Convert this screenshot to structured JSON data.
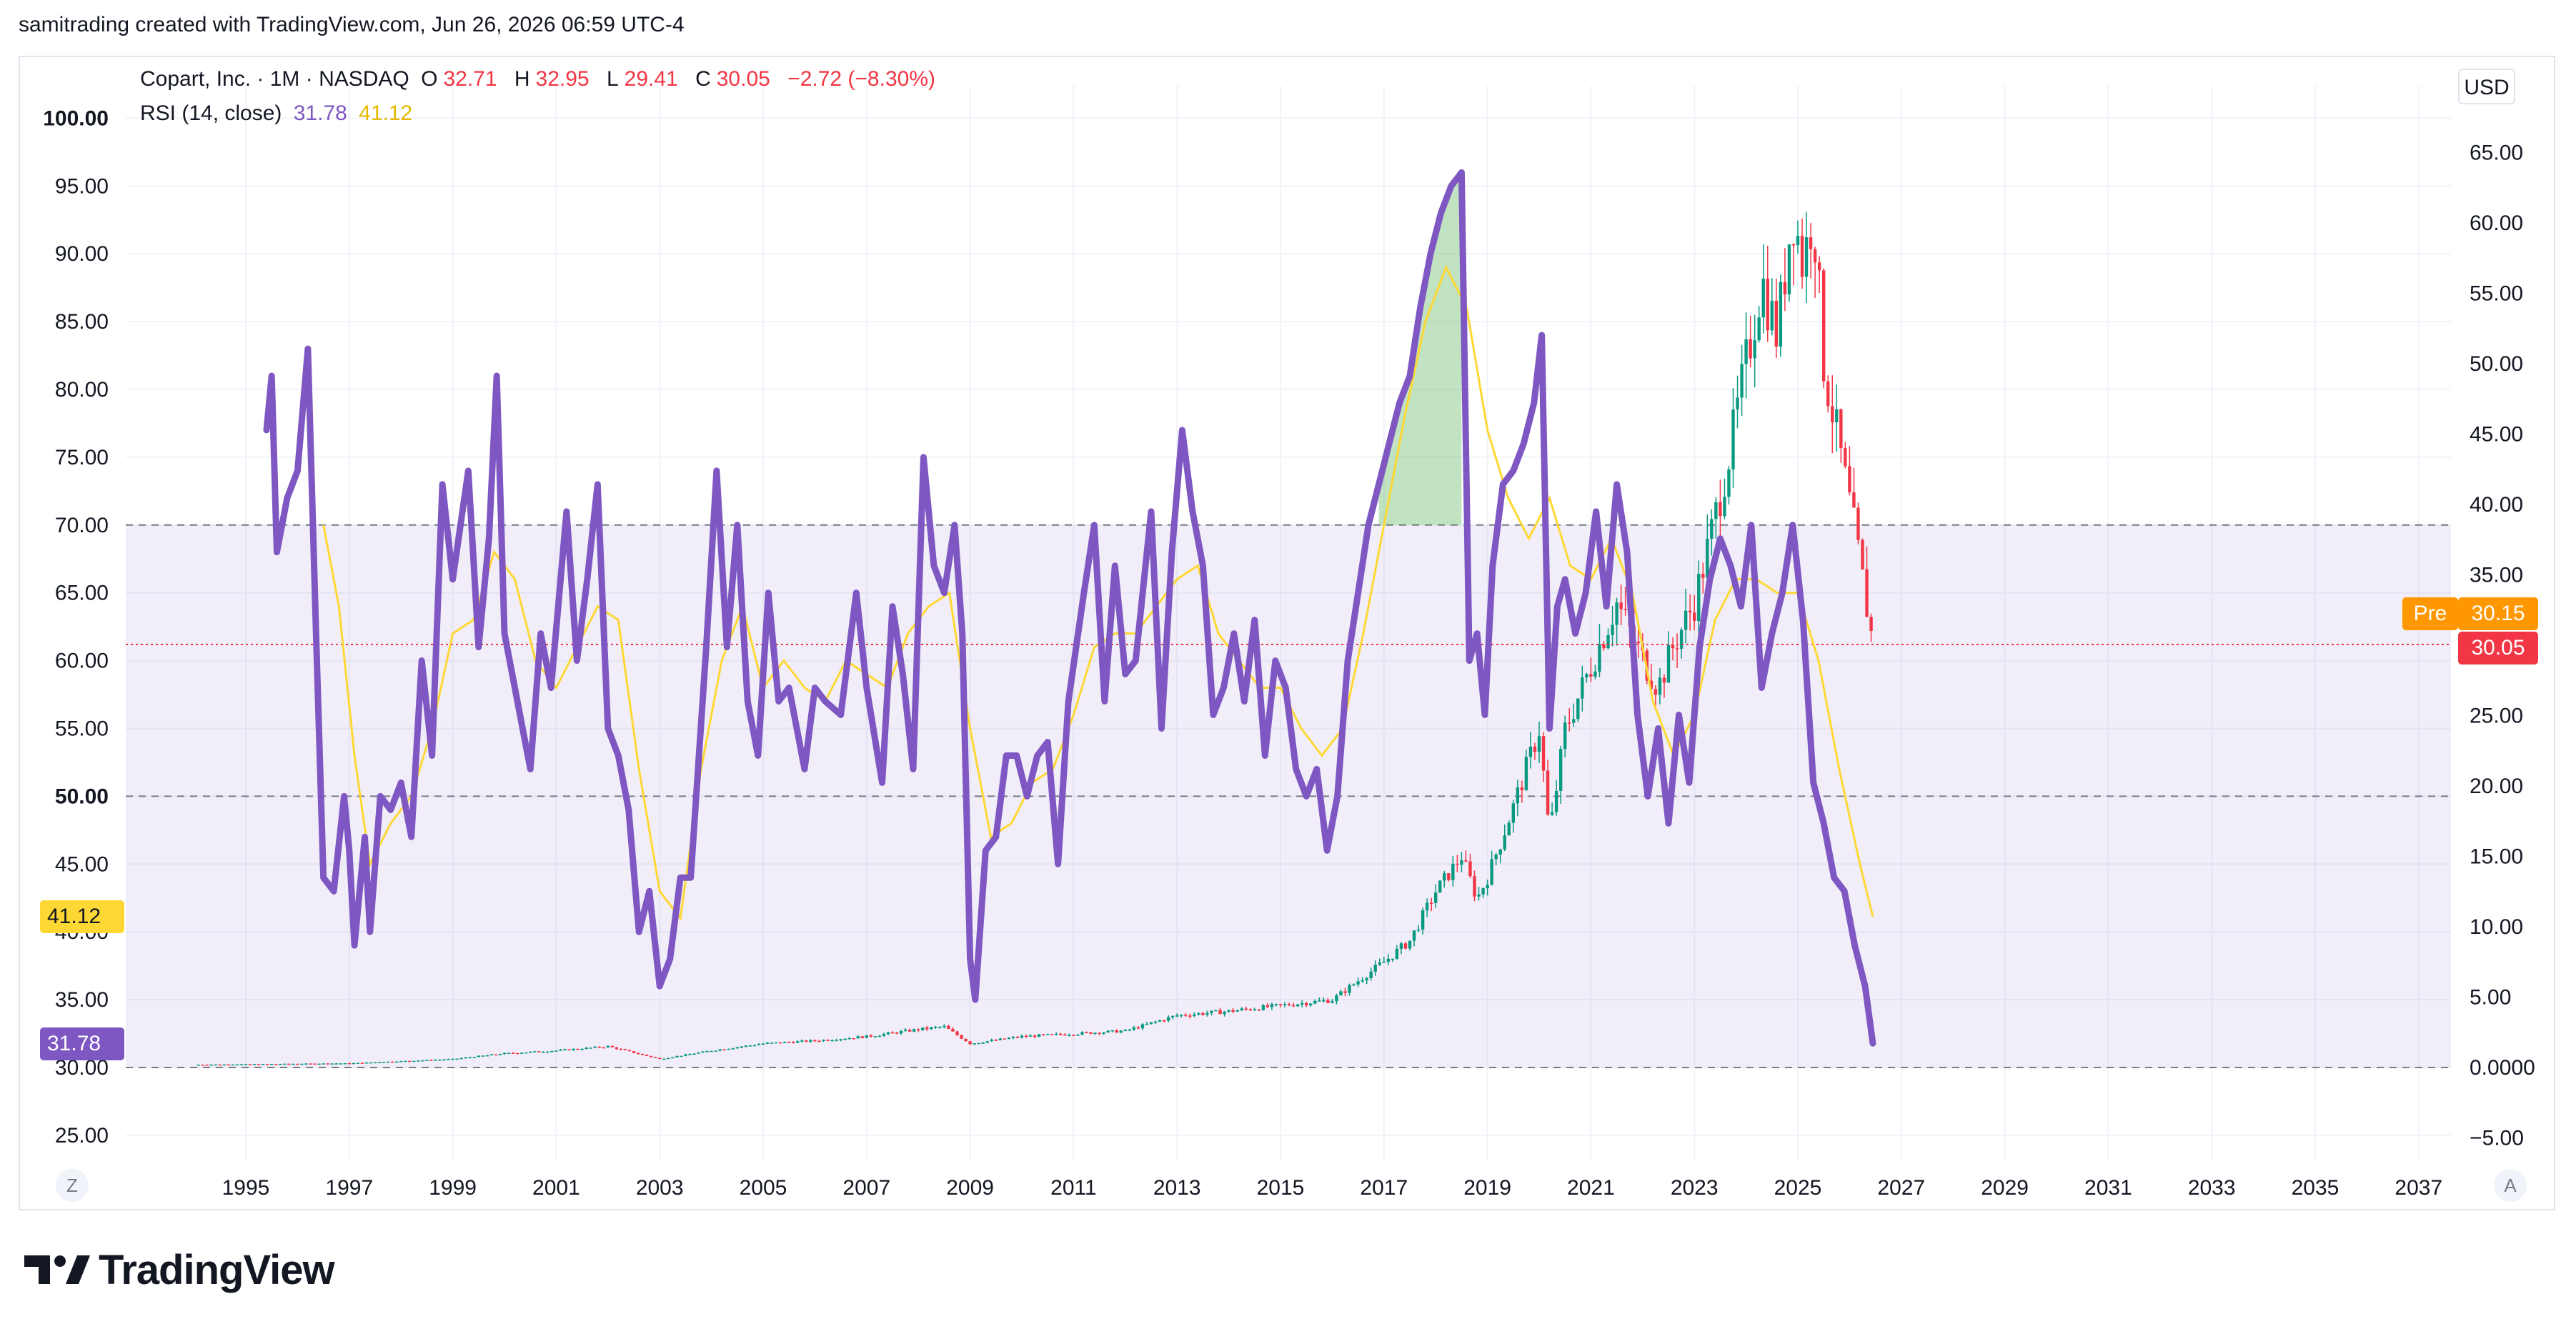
{
  "header": {
    "caption": "samitrading created with TradingView.com, Jun 26, 2026 06:59 UTC-4"
  },
  "legend": {
    "symbol": "Copart, Inc. · 1M · NASDAQ",
    "o_key": "O",
    "o_val": "32.71",
    "h_key": "H",
    "h_val": "32.95",
    "l_key": "L",
    "l_val": "29.41",
    "c_key": "C",
    "c_val": "30.05",
    "change": "−2.72 (−8.30%)",
    "rsi_label": "RSI (14, close)",
    "rsi_value": "31.78",
    "rsi_ma_value": "41.12"
  },
  "currency": "USD",
  "tags": {
    "pre_label": "Pre",
    "pre_price": "30.15",
    "last_price": "30.05",
    "rsi_ma": "41.12",
    "rsi": "31.78"
  },
  "buttons": {
    "left": "Z",
    "right": "A"
  },
  "brand": "TradingView",
  "colors": {
    "rsi": "#7e57c2",
    "rsi_ma": "#fdd835",
    "up": "#089981",
    "down": "#f23645",
    "band": "#7e57c2",
    "pre": "#ff9800"
  },
  "chart_data": {
    "type": "candlestick+line",
    "title": "Copart, Inc. · 1M · NASDAQ",
    "x_ticks": [
      "1995",
      "1997",
      "1999",
      "2001",
      "2003",
      "2005",
      "2007",
      "2009",
      "2011",
      "2013",
      "2015",
      "2017",
      "2019",
      "2021",
      "2023",
      "2025",
      "2027",
      "2029",
      "2031",
      "2033",
      "2035",
      "2037"
    ],
    "price_axis": {
      "ticks": [
        "65.00",
        "60.00",
        "55.00",
        "50.00",
        "45.00",
        "40.00",
        "35.00",
        "30.00",
        "25.00",
        "20.00",
        "15.00",
        "10.00",
        "5.00",
        "0.0000",
        "−5.00"
      ],
      "range": [
        -5,
        65
      ]
    },
    "rsi_axis": {
      "ticks": [
        "100.00",
        "95.00",
        "90.00",
        "85.00",
        "80.00",
        "75.00",
        "70.00",
        "65.00",
        "60.00",
        "55.00",
        "50.00",
        "45.00",
        "40.00",
        "35.00",
        "30.00",
        "25.00"
      ],
      "range": [
        25,
        100
      ],
      "bands": [
        30,
        50,
        70
      ]
    },
    "price_series": [
      [
        1994.0,
        0.2
      ],
      [
        1997.0,
        0.3
      ],
      [
        1999.0,
        0.6
      ],
      [
        2000.0,
        1.0
      ],
      [
        2001.0,
        1.2
      ],
      [
        2002.0,
        1.5
      ],
      [
        2003.0,
        0.6
      ],
      [
        2004.0,
        1.2
      ],
      [
        2005.0,
        1.7
      ],
      [
        2006.0,
        1.9
      ],
      [
        2007.0,
        2.2
      ],
      [
        2008.0,
        2.7
      ],
      [
        2008.5,
        2.9
      ],
      [
        2009.0,
        1.7
      ],
      [
        2010.0,
        2.2
      ],
      [
        2011.0,
        2.4
      ],
      [
        2012.0,
        2.6
      ],
      [
        2013.0,
        3.7
      ],
      [
        2014.0,
        4.0
      ],
      [
        2015.0,
        4.4
      ],
      [
        2016.0,
        4.8
      ],
      [
        2017.0,
        7.5
      ],
      [
        2017.5,
        9.0
      ],
      [
        2018.0,
        12.5
      ],
      [
        2018.5,
        15.0
      ],
      [
        2018.8,
        12.0
      ],
      [
        2019.0,
        13.5
      ],
      [
        2019.5,
        18.5
      ],
      [
        2020.0,
        24.0
      ],
      [
        2020.2,
        16.5
      ],
      [
        2020.5,
        24.0
      ],
      [
        2021.0,
        28.5
      ],
      [
        2021.5,
        33.0
      ],
      [
        2022.0,
        29.0
      ],
      [
        2022.3,
        27.0
      ],
      [
        2022.6,
        30.0
      ],
      [
        2023.0,
        33.0
      ],
      [
        2023.3,
        37.5
      ],
      [
        2023.7,
        44.0
      ],
      [
        2024.0,
        50.0
      ],
      [
        2024.3,
        56.0
      ],
      [
        2024.6,
        52.0
      ],
      [
        2024.9,
        61.0
      ],
      [
        2025.1,
        57.0
      ],
      [
        2025.3,
        61.0
      ],
      [
        2025.5,
        50.0
      ],
      [
        2025.8,
        44.0
      ],
      [
        2026.1,
        38.0
      ],
      [
        2026.3,
        33.5
      ],
      [
        2026.45,
        30.05
      ]
    ],
    "rsi_series": [
      [
        1995.4,
        77
      ],
      [
        1995.5,
        81
      ],
      [
        1995.6,
        68
      ],
      [
        1995.8,
        72
      ],
      [
        1996.0,
        74
      ],
      [
        1996.2,
        83
      ],
      [
        1996.35,
        63
      ],
      [
        1996.5,
        44
      ],
      [
        1996.7,
        43
      ],
      [
        1996.9,
        50
      ],
      [
        1997.0,
        46
      ],
      [
        1997.1,
        39
      ],
      [
        1997.3,
        47
      ],
      [
        1997.4,
        40
      ],
      [
        1997.6,
        50
      ],
      [
        1997.8,
        49
      ],
      [
        1998.0,
        51
      ],
      [
        1998.2,
        47
      ],
      [
        1998.4,
        60
      ],
      [
        1998.6,
        53
      ],
      [
        1998.8,
        73
      ],
      [
        1999.0,
        66
      ],
      [
        1999.3,
        74
      ],
      [
        1999.5,
        61
      ],
      [
        1999.7,
        69
      ],
      [
        1999.85,
        81
      ],
      [
        2000.0,
        62
      ],
      [
        2000.3,
        56
      ],
      [
        2000.5,
        52
      ],
      [
        2000.7,
        62
      ],
      [
        2000.9,
        58
      ],
      [
        2001.2,
        71
      ],
      [
        2001.4,
        60
      ],
      [
        2001.6,
        66
      ],
      [
        2001.8,
        73
      ],
      [
        2002.0,
        55
      ],
      [
        2002.2,
        53
      ],
      [
        2002.4,
        49
      ],
      [
        2002.6,
        40
      ],
      [
        2002.8,
        43
      ],
      [
        2003.0,
        36
      ],
      [
        2003.2,
        38
      ],
      [
        2003.4,
        44
      ],
      [
        2003.6,
        44
      ],
      [
        2003.9,
        61
      ],
      [
        2004.1,
        74
      ],
      [
        2004.3,
        61
      ],
      [
        2004.5,
        70
      ],
      [
        2004.7,
        57
      ],
      [
        2004.9,
        53
      ],
      [
        2005.1,
        65
      ],
      [
        2005.3,
        57
      ],
      [
        2005.5,
        58
      ],
      [
        2005.8,
        52
      ],
      [
        2006.0,
        58
      ],
      [
        2006.2,
        57
      ],
      [
        2006.5,
        56
      ],
      [
        2006.8,
        65
      ],
      [
        2007.0,
        58
      ],
      [
        2007.3,
        51
      ],
      [
        2007.5,
        64
      ],
      [
        2007.7,
        59
      ],
      [
        2007.9,
        52
      ],
      [
        2008.1,
        75
      ],
      [
        2008.3,
        67
      ],
      [
        2008.5,
        65
      ],
      [
        2008.7,
        70
      ],
      [
        2008.85,
        62
      ],
      [
        2009.0,
        38
      ],
      [
        2009.1,
        35
      ],
      [
        2009.3,
        46
      ],
      [
        2009.5,
        47
      ],
      [
        2009.7,
        53
      ],
      [
        2009.9,
        53
      ],
      [
        2010.1,
        50
      ],
      [
        2010.3,
        53
      ],
      [
        2010.5,
        54
      ],
      [
        2010.7,
        45
      ],
      [
        2010.9,
        57
      ],
      [
        2011.2,
        65
      ],
      [
        2011.4,
        70
      ],
      [
        2011.6,
        57
      ],
      [
        2011.8,
        67
      ],
      [
        2012.0,
        59
      ],
      [
        2012.2,
        60
      ],
      [
        2012.5,
        71
      ],
      [
        2012.7,
        55
      ],
      [
        2012.9,
        68
      ],
      [
        2013.1,
        77
      ],
      [
        2013.3,
        71
      ],
      [
        2013.5,
        67
      ],
      [
        2013.7,
        56
      ],
      [
        2013.9,
        58
      ],
      [
        2014.1,
        62
      ],
      [
        2014.3,
        57
      ],
      [
        2014.5,
        63
      ],
      [
        2014.7,
        53
      ],
      [
        2014.9,
        60
      ],
      [
        2015.1,
        58
      ],
      [
        2015.3,
        52
      ],
      [
        2015.5,
        50
      ],
      [
        2015.7,
        52
      ],
      [
        2015.9,
        46
      ],
      [
        2016.1,
        50
      ],
      [
        2016.3,
        60
      ],
      [
        2016.5,
        65
      ],
      [
        2016.7,
        70
      ],
      [
        2016.9,
        73
      ],
      [
        2017.1,
        76
      ],
      [
        2017.3,
        79
      ],
      [
        2017.5,
        81
      ],
      [
        2017.7,
        86
      ],
      [
        2017.9,
        90
      ],
      [
        2018.1,
        93
      ],
      [
        2018.3,
        95
      ],
      [
        2018.5,
        96
      ],
      [
        2018.65,
        60
      ],
      [
        2018.8,
        62
      ],
      [
        2018.95,
        56
      ],
      [
        2019.1,
        67
      ],
      [
        2019.3,
        73
      ],
      [
        2019.5,
        74
      ],
      [
        2019.7,
        76
      ],
      [
        2019.9,
        79
      ],
      [
        2020.05,
        84
      ],
      [
        2020.2,
        55
      ],
      [
        2020.35,
        64
      ],
      [
        2020.5,
        66
      ],
      [
        2020.7,
        62
      ],
      [
        2020.9,
        65
      ],
      [
        2021.1,
        71
      ],
      [
        2021.3,
        64
      ],
      [
        2021.5,
        73
      ],
      [
        2021.7,
        68
      ],
      [
        2021.9,
        56
      ],
      [
        2022.1,
        50
      ],
      [
        2022.3,
        55
      ],
      [
        2022.5,
        48
      ],
      [
        2022.7,
        56
      ],
      [
        2022.9,
        51
      ],
      [
        2023.1,
        61
      ],
      [
        2023.3,
        66
      ],
      [
        2023.5,
        69
      ],
      [
        2023.7,
        67
      ],
      [
        2023.9,
        64
      ],
      [
        2024.1,
        70
      ],
      [
        2024.3,
        58
      ],
      [
        2024.5,
        62
      ],
      [
        2024.7,
        65
      ],
      [
        2024.9,
        70
      ],
      [
        2025.1,
        63
      ],
      [
        2025.3,
        51
      ],
      [
        2025.5,
        48
      ],
      [
        2025.7,
        44
      ],
      [
        2025.9,
        43
      ],
      [
        2026.1,
        39
      ],
      [
        2026.3,
        36
      ],
      [
        2026.45,
        31.78
      ]
    ],
    "rsi_ma_series": [
      [
        1996.5,
        70
      ],
      [
        1996.8,
        64
      ],
      [
        1997.1,
        53
      ],
      [
        1997.4,
        45
      ],
      [
        1997.8,
        48
      ],
      [
        1998.2,
        50
      ],
      [
        1998.6,
        55
      ],
      [
        1999.0,
        62
      ],
      [
        1999.4,
        63
      ],
      [
        1999.8,
        68
      ],
      [
        2000.2,
        66
      ],
      [
        2000.6,
        60
      ],
      [
        2001.0,
        58
      ],
      [
        2001.4,
        61
      ],
      [
        2001.8,
        64
      ],
      [
        2002.2,
        63
      ],
      [
        2002.6,
        52
      ],
      [
        2003.0,
        43
      ],
      [
        2003.4,
        41
      ],
      [
        2003.8,
        52
      ],
      [
        2004.2,
        60
      ],
      [
        2004.6,
        64
      ],
      [
        2005.0,
        58
      ],
      [
        2005.4,
        60
      ],
      [
        2005.8,
        58
      ],
      [
        2006.2,
        57
      ],
      [
        2006.6,
        60
      ],
      [
        2007.0,
        59
      ],
      [
        2007.4,
        58
      ],
      [
        2007.8,
        62
      ],
      [
        2008.2,
        64
      ],
      [
        2008.6,
        65
      ],
      [
        2009.0,
        55
      ],
      [
        2009.4,
        47
      ],
      [
        2009.8,
        48
      ],
      [
        2010.2,
        51
      ],
      [
        2010.6,
        52
      ],
      [
        2011.0,
        56
      ],
      [
        2011.4,
        61
      ],
      [
        2011.8,
        62
      ],
      [
        2012.2,
        62
      ],
      [
        2012.6,
        64
      ],
      [
        2013.0,
        66
      ],
      [
        2013.4,
        67
      ],
      [
        2013.8,
        62
      ],
      [
        2014.2,
        60
      ],
      [
        2014.6,
        58
      ],
      [
        2015.0,
        58
      ],
      [
        2015.4,
        55
      ],
      [
        2015.8,
        53
      ],
      [
        2016.2,
        55
      ],
      [
        2016.6,
        62
      ],
      [
        2017.0,
        70
      ],
      [
        2017.4,
        78
      ],
      [
        2017.8,
        85
      ],
      [
        2018.2,
        89
      ],
      [
        2018.6,
        86
      ],
      [
        2019.0,
        77
      ],
      [
        2019.4,
        72
      ],
      [
        2019.8,
        69
      ],
      [
        2020.2,
        72
      ],
      [
        2020.6,
        67
      ],
      [
        2021.0,
        66
      ],
      [
        2021.4,
        69
      ],
      [
        2021.8,
        65
      ],
      [
        2022.2,
        57
      ],
      [
        2022.6,
        53
      ],
      [
        2023.0,
        56
      ],
      [
        2023.4,
        63
      ],
      [
        2023.8,
        66
      ],
      [
        2024.2,
        66
      ],
      [
        2024.6,
        65
      ],
      [
        2025.0,
        65
      ],
      [
        2025.4,
        60
      ],
      [
        2025.8,
        52
      ],
      [
        2026.2,
        45
      ],
      [
        2026.45,
        41.12
      ]
    ]
  }
}
